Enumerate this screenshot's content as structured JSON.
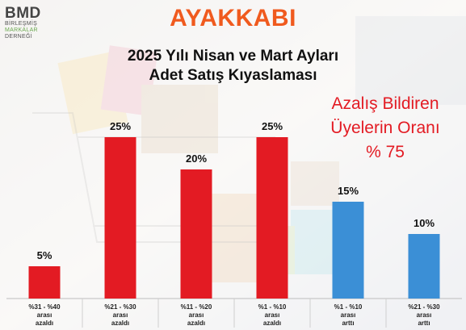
{
  "logo": {
    "mark": "BMD",
    "lines": [
      "BİRLEŞMİŞ",
      "MARKALAR",
      "DERNEĞİ"
    ]
  },
  "header": {
    "title": "AYAKKABI",
    "subtitle_lines": [
      "2025 Yılı Nisan ve Mart Ayları",
      "Adet Satış Kıyaslaması"
    ]
  },
  "callout": {
    "lines": [
      "Azalış Bildiren",
      "Üyelerin Oranı",
      "% 75"
    ]
  },
  "colors": {
    "title": "#f05a1e",
    "callout": "#e31b23",
    "decrease_bar": "#e31b23",
    "increase_bar": "#3b8fd6"
  },
  "chart_data": {
    "type": "bar",
    "title": "",
    "xlabel": "",
    "ylabel": "",
    "ylim": [
      0,
      27
    ],
    "grid": false,
    "legend": "none",
    "categories": [
      [
        "%31 - %40",
        "arası",
        "azaldı"
      ],
      [
        "%21 - %30",
        "arası",
        "azaldı"
      ],
      [
        "%11 - %20",
        "arası",
        "azaldı"
      ],
      [
        "%1 - %10",
        "arası",
        "azaldı"
      ],
      [
        "%1 - %10",
        "arası",
        "arttı"
      ],
      [
        "%21 - %30",
        "arası",
        "arttı"
      ]
    ],
    "values": [
      5,
      25,
      20,
      25,
      15,
      10
    ],
    "value_labels": [
      "5%",
      "25%",
      "20%",
      "25%",
      "15%",
      "10%"
    ],
    "bar_colors": [
      "#e31b23",
      "#e31b23",
      "#e31b23",
      "#e31b23",
      "#3b8fd6",
      "#3b8fd6"
    ]
  }
}
